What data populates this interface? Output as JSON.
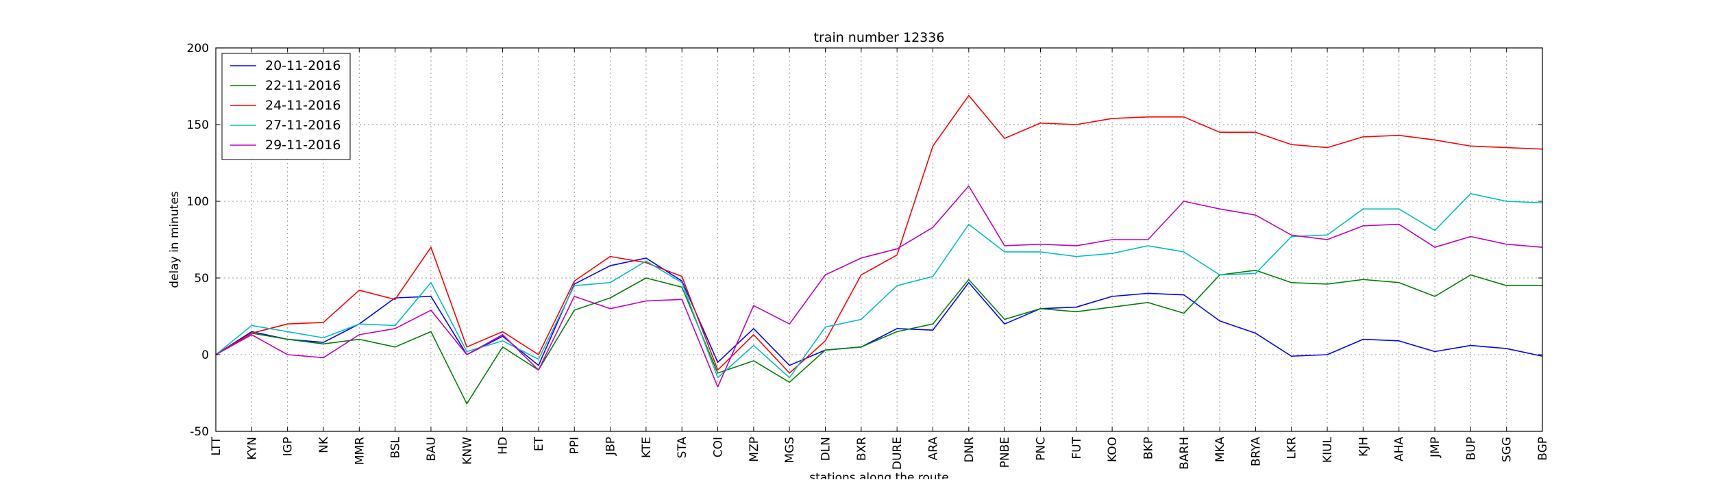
{
  "chart_data": {
    "type": "line",
    "title": "train number 12336",
    "xlabel": "stations along the route",
    "ylabel": "delay in minutes",
    "ylim": [
      -50,
      200
    ],
    "yticks": [
      -50,
      0,
      50,
      100,
      150,
      200
    ],
    "grid": true,
    "grid_style": "dotted",
    "legend_position": "top-left",
    "categories": [
      "LTT",
      "KYN",
      "IGP",
      "NK",
      "MMR",
      "BSL",
      "BAU",
      "KNW",
      "HD",
      "ET",
      "PPI",
      "JBP",
      "KTE",
      "STA",
      "COI",
      "MZP",
      "MGS",
      "DLN",
      "BXR",
      "DURE",
      "ARA",
      "DNR",
      "PNBE",
      "PNC",
      "FUT",
      "KOO",
      "BKP",
      "BARH",
      "MKA",
      "BRYA",
      "LKR",
      "KIUL",
      "KJH",
      "AHA",
      "JMP",
      "BUP",
      "SGG",
      "BGP"
    ],
    "series": [
      {
        "name": "20-11-2016",
        "color": "#0000ff",
        "values": [
          0,
          15,
          10,
          8,
          20,
          37,
          38,
          0,
          12,
          -7,
          46,
          58,
          63,
          48,
          -5,
          17,
          -7,
          3,
          5,
          17,
          16,
          47,
          20,
          30,
          31,
          38,
          40,
          39,
          22,
          14,
          -1,
          0,
          10,
          9,
          2,
          6,
          4,
          -1
        ]
      },
      {
        "name": "22-11-2016",
        "color": "#008000",
        "values": [
          0,
          14,
          10,
          7,
          10,
          5,
          15,
          -32,
          5,
          -10,
          29,
          37,
          50,
          44,
          -12,
          -4,
          -18,
          3,
          5,
          15,
          20,
          49,
          23,
          30,
          28,
          31,
          34,
          27,
          52,
          55,
          47,
          46,
          49,
          47,
          38,
          52,
          45,
          45
        ]
      },
      {
        "name": "24-11-2016",
        "color": "#ff0000",
        "values": [
          0,
          14,
          20,
          21,
          42,
          36,
          70,
          5,
          15,
          0,
          48,
          64,
          60,
          51,
          -10,
          13,
          -12,
          9,
          52,
          65,
          136,
          169,
          141,
          151,
          150,
          154,
          155,
          155,
          145,
          145,
          137,
          135,
          142,
          143,
          140,
          136,
          135,
          134
        ]
      },
      {
        "name": "27-11-2016",
        "color": "#00bfbf",
        "values": [
          0,
          19,
          15,
          11,
          20,
          19,
          47,
          2,
          9,
          -3,
          45,
          47,
          61,
          47,
          -15,
          6,
          -15,
          18,
          23,
          45,
          51,
          85,
          67,
          67,
          64,
          66,
          71,
          67,
          52,
          53,
          77,
          78,
          95,
          95,
          81,
          105,
          100,
          99
        ]
      },
      {
        "name": "29-11-2016",
        "color": "#bf00bf",
        "values": [
          0,
          13,
          0,
          -2,
          13,
          17,
          29,
          0,
          13,
          -10,
          38,
          30,
          35,
          36,
          -21,
          32,
          20,
          52,
          63,
          69,
          83,
          110,
          71,
          72,
          71,
          75,
          75,
          100,
          95,
          91,
          78,
          75,
          84,
          85,
          70,
          77,
          72,
          70
        ]
      }
    ]
  }
}
